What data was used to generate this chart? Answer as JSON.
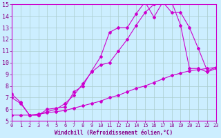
{
  "bg_color": "#cceeff",
  "line_color": "#cc00cc",
  "grid_color": "#aacccc",
  "xlabel": "Windchill (Refroidissement éolien,°C)",
  "xlabel_color": "#880088",
  "tick_color": "#880088",
  "xlim": [
    0,
    23
  ],
  "ylim": [
    5,
    15
  ],
  "yticks": [
    5,
    6,
    7,
    8,
    9,
    10,
    11,
    12,
    13,
    14,
    15
  ],
  "xticks": [
    0,
    1,
    2,
    3,
    4,
    5,
    6,
    7,
    8,
    9,
    10,
    11,
    12,
    13,
    14,
    15,
    16,
    17,
    18,
    19,
    20,
    21,
    22,
    23
  ],
  "curve1_x": [
    0,
    1,
    2,
    3,
    4,
    5,
    6,
    7,
    8,
    9,
    10,
    11,
    12,
    13,
    14,
    15,
    16,
    17,
    18,
    19,
    20,
    21,
    22,
    23
  ],
  "curve1_y": [
    7.3,
    6.6,
    5.5,
    5.5,
    6.0,
    6.1,
    6.2,
    7.5,
    8.0,
    9.3,
    10.5,
    12.6,
    13.0,
    13.0,
    14.2,
    15.2,
    13.9,
    15.2,
    14.3,
    14.3,
    13.0,
    11.2,
    9.3,
    9.6
  ],
  "curve2_x": [
    0,
    1,
    2,
    3,
    4,
    5,
    6,
    7,
    8,
    9,
    10,
    11,
    12,
    13,
    14,
    15,
    16,
    17,
    18,
    19,
    20,
    21,
    22,
    23
  ],
  "curve2_y": [
    7.0,
    6.5,
    5.5,
    5.5,
    5.8,
    6.0,
    6.5,
    7.2,
    8.2,
    9.2,
    9.8,
    10.0,
    11.0,
    12.0,
    13.2,
    14.3,
    15.0,
    15.5,
    15.2,
    13.2,
    9.5,
    9.5,
    9.2,
    9.5
  ],
  "curve3_x": [
    0,
    1,
    2,
    3,
    4,
    5,
    6,
    7,
    8,
    9,
    10,
    11,
    12,
    13,
    14,
    15,
    16,
    17,
    18,
    19,
    20,
    21,
    22,
    23
  ],
  "curve3_y": [
    5.5,
    5.5,
    5.5,
    5.6,
    5.7,
    5.8,
    5.9,
    6.1,
    6.3,
    6.5,
    6.7,
    7.0,
    7.2,
    7.5,
    7.8,
    8.0,
    8.3,
    8.6,
    8.9,
    9.1,
    9.3,
    9.4,
    9.5,
    9.6
  ]
}
